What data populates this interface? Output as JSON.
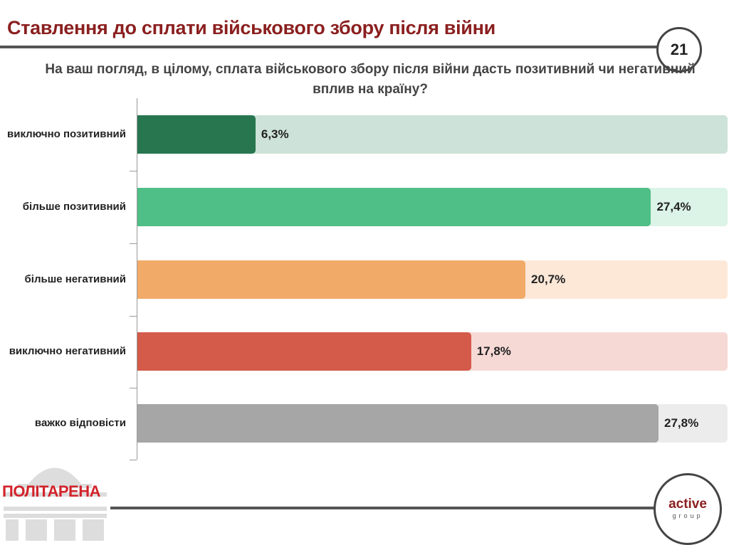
{
  "header": {
    "title": "Ставлення до сплати військового збору після війни",
    "page_number": "21"
  },
  "chart_data": {
    "type": "bar",
    "orientation": "horizontal",
    "title": "На ваш погляд, в цілому, сплата військового збору після війни дасть позитивний чи негативний вплив на країну?",
    "categories": [
      "виключно позитивний",
      "більше позитивний",
      "більше негативний",
      "виключно негативний",
      "важко відповісти"
    ],
    "values": [
      6.3,
      27.4,
      20.7,
      17.8,
      27.8
    ],
    "labels": [
      "6,3%",
      "27,4%",
      "20,7%",
      "17,8%",
      "27,8%"
    ],
    "colors": [
      "#277650",
      "#4fbf87",
      "#f2aa68",
      "#d45a4a",
      "#a6a6a6"
    ],
    "track_colors": [
      "#cde2d8",
      "#dcf3e7",
      "#fde8d8",
      "#f6d9d5",
      "#ececec"
    ],
    "xlim": [
      0,
      27.8
    ]
  },
  "footer": {
    "logo_left": "ПОЛІТАРЕНА",
    "logo_right_1": "active",
    "logo_right_2": "group"
  }
}
